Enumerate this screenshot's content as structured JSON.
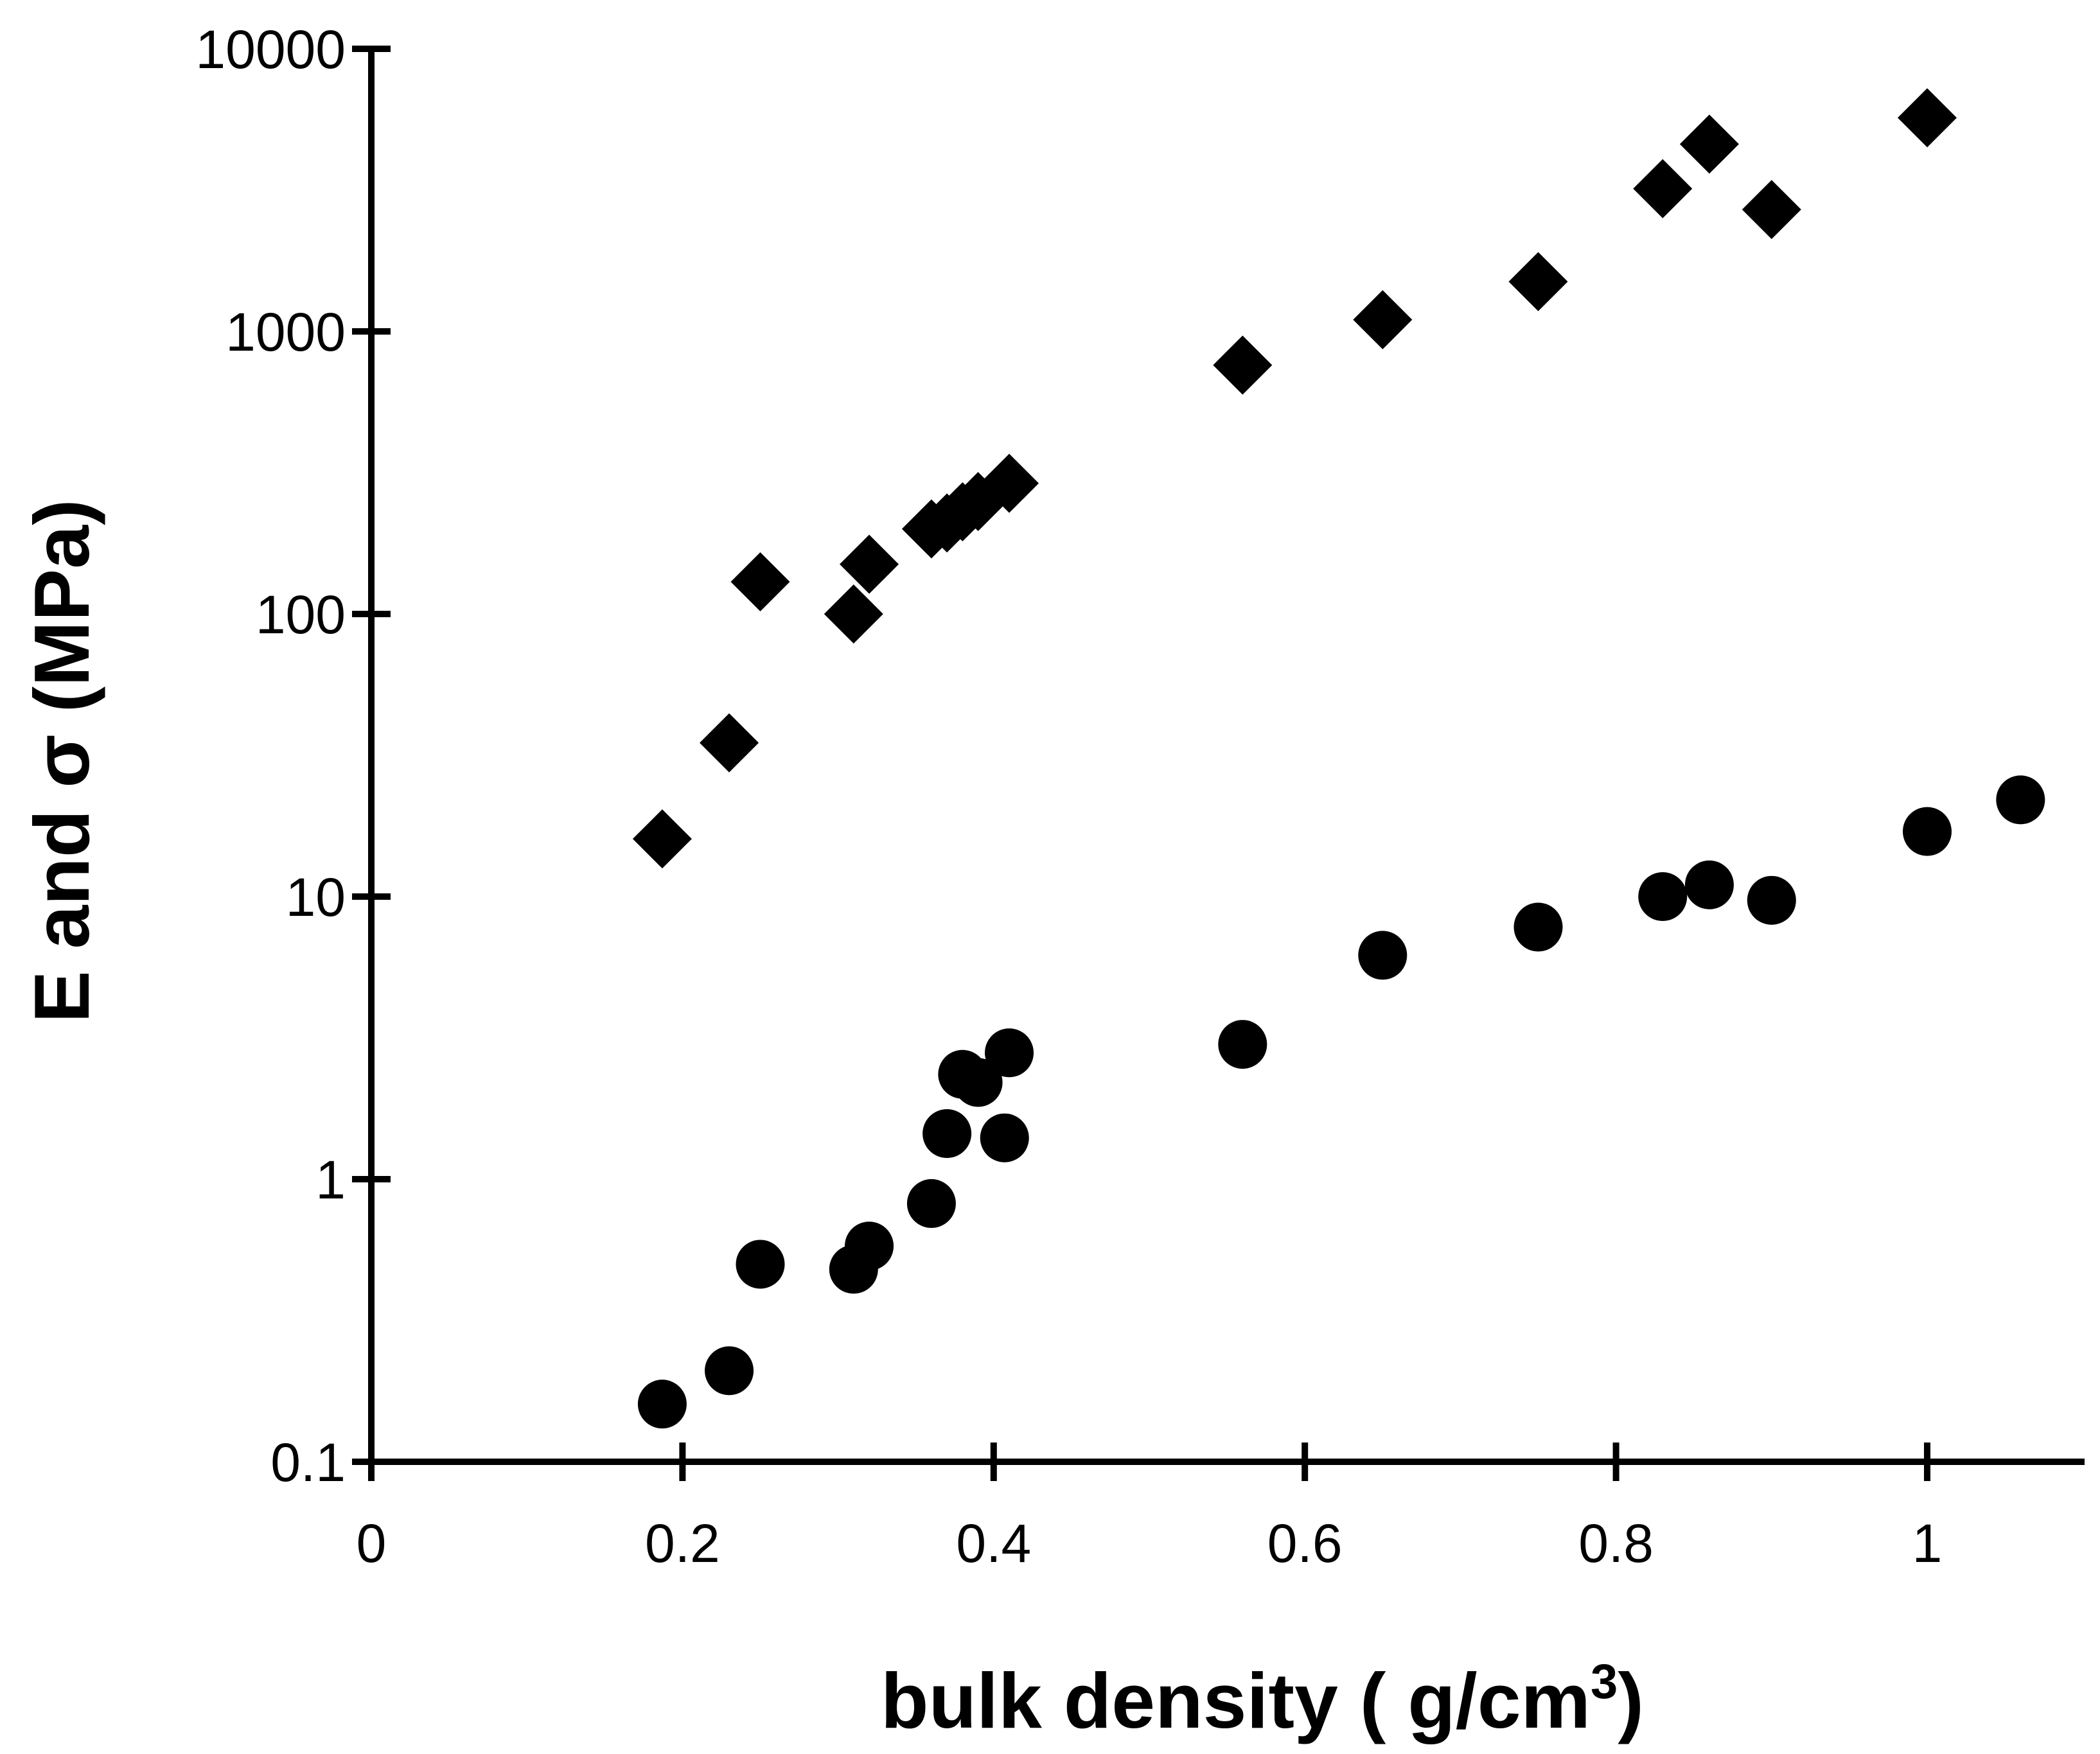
{
  "chart_data": {
    "type": "scatter",
    "xlabel": "bulk density ( g/cm",
    "xlabel_sup": "3",
    "xlabel_end": ")",
    "ylabel": "E and σ (MPa)",
    "x_ticks": [
      "0",
      "0.2",
      "0.4",
      "0.6",
      "0.8",
      "1"
    ],
    "y_ticks": [
      "0.1",
      "1",
      "10",
      "100",
      "1000",
      "10000"
    ],
    "xlim": [
      0,
      1.1
    ],
    "ylim": [
      0.1,
      10000
    ],
    "y_scale": "log",
    "grid": false,
    "legend": "none",
    "series": [
      {
        "marker": "diamond",
        "color": "#000000",
        "points": [
          [
            0.187,
            16
          ],
          [
            0.23,
            35
          ],
          [
            0.25,
            130
          ],
          [
            0.31,
            100
          ],
          [
            0.32,
            150
          ],
          [
            0.36,
            200
          ],
          [
            0.37,
            210
          ],
          [
            0.38,
            230
          ],
          [
            0.39,
            250
          ],
          [
            0.41,
            290
          ],
          [
            0.56,
            760
          ],
          [
            0.65,
            1100
          ],
          [
            0.75,
            1500
          ],
          [
            0.83,
            3200
          ],
          [
            0.86,
            4600
          ],
          [
            0.9,
            2700
          ],
          [
            1.0,
            5700
          ]
        ]
      },
      {
        "marker": "circle",
        "color": "#000000",
        "points": [
          [
            0.187,
            0.16
          ],
          [
            0.23,
            0.21
          ],
          [
            0.25,
            0.5
          ],
          [
            0.31,
            0.48
          ],
          [
            0.32,
            0.58
          ],
          [
            0.36,
            0.82
          ],
          [
            0.37,
            1.45
          ],
          [
            0.38,
            2.35
          ],
          [
            0.39,
            2.2
          ],
          [
            0.407,
            1.4
          ],
          [
            0.41,
            2.8
          ],
          [
            0.56,
            3.0
          ],
          [
            0.65,
            6.2
          ],
          [
            0.75,
            7.8
          ],
          [
            0.83,
            10
          ],
          [
            0.86,
            11
          ],
          [
            0.9,
            9.7
          ],
          [
            1.0,
            17
          ],
          [
            1.06,
            22
          ]
        ]
      }
    ]
  }
}
